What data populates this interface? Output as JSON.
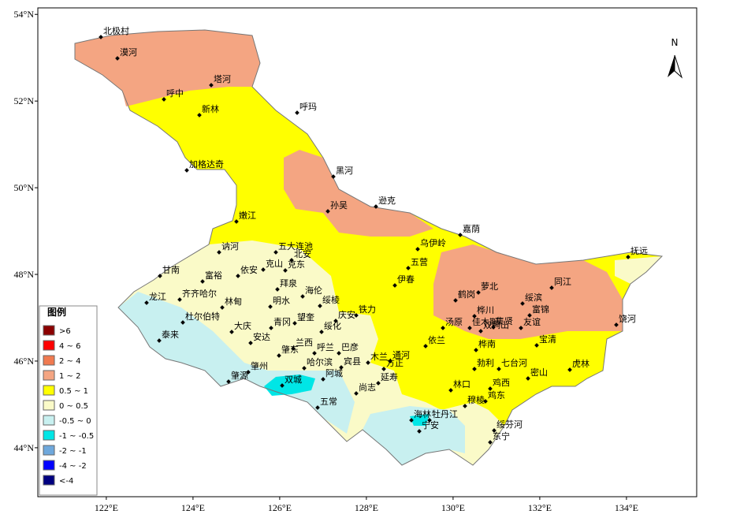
{
  "map": {
    "xlim": [
      120.42,
      135.62
    ],
    "ylim": [
      42.87,
      54.15
    ],
    "xticks": [
      {
        "value": 122,
        "label": "122°E"
      },
      {
        "value": 124,
        "label": "124°E"
      },
      {
        "value": 126,
        "label": "126°E"
      },
      {
        "value": 128,
        "label": "128°E"
      },
      {
        "value": 130,
        "label": "130°E"
      },
      {
        "value": 132,
        "label": "132°E"
      },
      {
        "value": 134,
        "label": "134°E"
      }
    ],
    "yticks": [
      {
        "value": 44,
        "label": "44°N"
      },
      {
        "value": 46,
        "label": "46°N"
      },
      {
        "value": 48,
        "label": "48°N"
      },
      {
        "value": 50,
        "label": "50°N"
      },
      {
        "value": 52,
        "label": "52°N"
      },
      {
        "value": 54,
        "label": "54°N"
      }
    ],
    "north": "N",
    "cities": [
      "北极村",
      "漠河",
      "塔河",
      "呼中",
      "新林",
      "呼玛",
      "加格达奇",
      "黑河",
      "逊克",
      "孙吴",
      "嫩江",
      "嘉荫",
      "五大连池",
      "讷河",
      "乌伊岭",
      "抚远",
      "北安",
      "克山",
      "克东",
      "甘南",
      "五营",
      "依安",
      "伊春",
      "富裕",
      "同江",
      "拜泉",
      "萝北",
      "龙江",
      "齐齐哈尔",
      "海伦",
      "鹤岗",
      "绥滨",
      "明水",
      "林甸",
      "绥棱",
      "铁力",
      "富锦",
      "桦川",
      "杜尔伯特",
      "青冈",
      "望奎",
      "庆安",
      "集贤",
      "汤原",
      "佳木斯",
      "双鸭山",
      "友谊",
      "饶河",
      "绥化",
      "大庆",
      "泰来",
      "安达",
      "兰西",
      "依兰",
      "宝清",
      "桦南",
      "肇东",
      "呼兰",
      "巴彦",
      "木兰",
      "通河",
      "勃利",
      "七台河",
      "方正",
      "肇州",
      "哈尔滨",
      "宾县",
      "密山",
      "虎林",
      "阿城",
      "延寿",
      "肇源",
      "双城",
      "林口",
      "鸡西",
      "尚志",
      "鸡东",
      "穆棱",
      "五常",
      "海林",
      "牡丹江",
      "宁安",
      "绥芬河",
      "东宁"
    ],
    "legend": {
      "title": "图例",
      "items": [
        {
          "label": ">6",
          "color": "#8b0000"
        },
        {
          "label": "4 ~ 6",
          "color": "#ff0000"
        },
        {
          "label": "2 ~ 4",
          "color": "#f07a50"
        },
        {
          "label": "1 ~ 2",
          "color": "#f4a582"
        },
        {
          "label": "0.5 ~ 1",
          "color": "#ffff00"
        },
        {
          "label": "0 ~ 0.5",
          "color": "#fafac8"
        },
        {
          "label": "-0.5 ~ 0",
          "color": "#c8f0f0"
        },
        {
          "label": "-1 ~ -0.5",
          "color": "#00e6e6"
        },
        {
          "label": "-2 ~ -1",
          "color": "#6fa8dc"
        },
        {
          "label": "-4 ~ -2",
          "color": "#0000ff"
        },
        {
          "label": "<-4",
          "color": "#000080"
        }
      ]
    }
  }
}
